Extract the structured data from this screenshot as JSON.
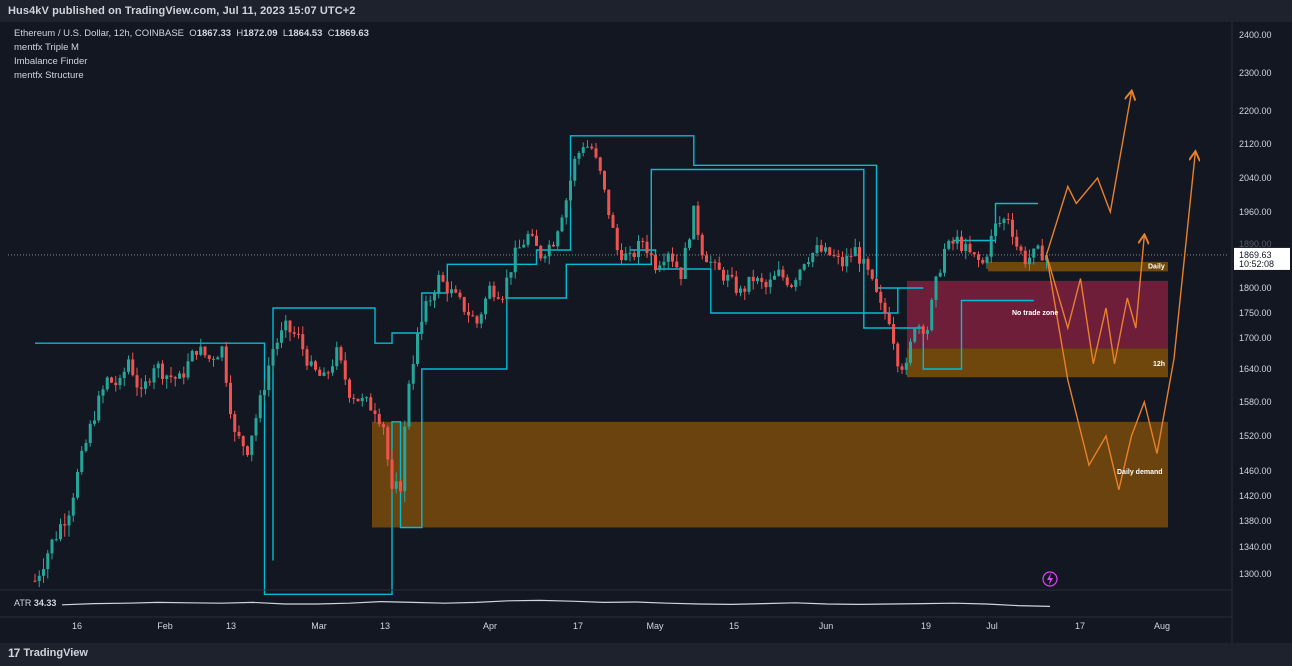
{
  "header": {
    "publisher": "Hus4kV published on TradingView.com, Jul 11, 2023 15:07 UTC+2"
  },
  "legend": {
    "symbol": "Ethereum / U.S. Dollar, 12h, COINBASE",
    "o_label": "O",
    "o": "1867.33",
    "h_label": "H",
    "h": "1872.09",
    "l_label": "L",
    "l": "1864.53",
    "c_label": "C",
    "c": "1869.63",
    "indicators": [
      "mentfx Triple M",
      "Imbalance Finder",
      "mentfx Structure"
    ]
  },
  "price_label": {
    "price": "1869.63",
    "countdown": "10:52:08",
    "partial_hidden": "1890.00"
  },
  "atr": {
    "label": "ATR",
    "value": "34.33"
  },
  "footer": {
    "brand": "TradingView"
  },
  "colors": {
    "background": "#131722",
    "bull": "#26a69a",
    "bear": "#ef5350",
    "structure": "#00bcd4",
    "demand_zone": "#7a4b0a",
    "no_trade_zone": "#7a1f3d",
    "projection": "#e8802a"
  },
  "chart_data": {
    "type": "candlestick",
    "price_axis_ticks": [
      1300,
      1340,
      1380,
      1420,
      1460,
      1520,
      1580,
      1640,
      1700,
      1750,
      1800,
      1880,
      1960,
      2040,
      2120,
      2200,
      2300,
      2400
    ],
    "price_axis_labels": [
      "1300.00",
      "1340.00",
      "1380.00",
      "1420.00",
      "1460.00",
      "1520.00",
      "1580.00",
      "1640.00",
      "1700.00",
      "1750.00",
      "1800.00",
      "1880.00",
      "1960.00",
      "2040.00",
      "2120.00",
      "2200.00",
      "2300.00",
      "2400.00"
    ],
    "time_axis_labels": [
      "16",
      "Feb",
      "13",
      "Mar",
      "13",
      "Apr",
      "17",
      "May",
      "15",
      "Jun",
      "19",
      "Jul",
      "17",
      "Aug"
    ],
    "zones": [
      {
        "label": "Daily",
        "top": 1855,
        "bottom": 1835
      },
      {
        "label": "No trade zone",
        "top": 1815,
        "bottom": 1680
      },
      {
        "label": "12h",
        "top": 1680,
        "bottom": 1625
      },
      {
        "label": "Daily demand",
        "top": 1545,
        "bottom": 1370
      }
    ],
    "last_price": 1869.63,
    "price_series": [
      {
        "d": 0,
        "p": 1290
      },
      {
        "d": 2,
        "p": 1320
      },
      {
        "d": 5,
        "p": 1360
      },
      {
        "d": 8,
        "p": 1400
      },
      {
        "d": 11,
        "p": 1480
      },
      {
        "d": 14,
        "p": 1560
      },
      {
        "d": 17,
        "p": 1620
      },
      {
        "d": 20,
        "p": 1610
      },
      {
        "d": 22,
        "p": 1660
      },
      {
        "d": 25,
        "p": 1590
      },
      {
        "d": 28,
        "p": 1650
      },
      {
        "d": 31,
        "p": 1630
      },
      {
        "d": 34,
        "p": 1620
      },
      {
        "d": 38,
        "p": 1680
      },
      {
        "d": 41,
        "p": 1660
      },
      {
        "d": 44,
        "p": 1680
      },
      {
        "d": 47,
        "p": 1520
      },
      {
        "d": 50,
        "p": 1500
      },
      {
        "d": 53,
        "p": 1580
      },
      {
        "d": 56,
        "p": 1680
      },
      {
        "d": 59,
        "p": 1720
      },
      {
        "d": 62,
        "p": 1700
      },
      {
        "d": 65,
        "p": 1640
      },
      {
        "d": 68,
        "p": 1620
      },
      {
        "d": 71,
        "p": 1670
      },
      {
        "d": 74,
        "p": 1600
      },
      {
        "d": 77,
        "p": 1580
      },
      {
        "d": 80,
        "p": 1570
      },
      {
        "d": 82,
        "p": 1540
      },
      {
        "d": 84,
        "p": 1420
      },
      {
        "d": 86,
        "p": 1440
      },
      {
        "d": 88,
        "p": 1620
      },
      {
        "d": 90,
        "p": 1700
      },
      {
        "d": 92,
        "p": 1760
      },
      {
        "d": 95,
        "p": 1820
      },
      {
        "d": 98,
        "p": 1790
      },
      {
        "d": 101,
        "p": 1760
      },
      {
        "d": 104,
        "p": 1730
      },
      {
        "d": 107,
        "p": 1800
      },
      {
        "d": 110,
        "p": 1790
      },
      {
        "d": 113,
        "p": 1870
      },
      {
        "d": 116,
        "p": 1910
      },
      {
        "d": 119,
        "p": 1870
      },
      {
        "d": 122,
        "p": 1900
      },
      {
        "d": 125,
        "p": 1990
      },
      {
        "d": 127,
        "p": 2080
      },
      {
        "d": 129,
        "p": 2120
      },
      {
        "d": 131,
        "p": 2110
      },
      {
        "d": 133,
        "p": 2050
      },
      {
        "d": 135,
        "p": 1960
      },
      {
        "d": 137,
        "p": 1880
      },
      {
        "d": 140,
        "p": 1860
      },
      {
        "d": 143,
        "p": 1900
      },
      {
        "d": 146,
        "p": 1850
      },
      {
        "d": 149,
        "p": 1880
      },
      {
        "d": 152,
        "p": 1830
      },
      {
        "d": 155,
        "p": 1960
      },
      {
        "d": 157,
        "p": 1880
      },
      {
        "d": 160,
        "p": 1840
      },
      {
        "d": 163,
        "p": 1820
      },
      {
        "d": 166,
        "p": 1790
      },
      {
        "d": 169,
        "p": 1820
      },
      {
        "d": 172,
        "p": 1800
      },
      {
        "d": 175,
        "p": 1830
      },
      {
        "d": 178,
        "p": 1810
      },
      {
        "d": 181,
        "p": 1860
      },
      {
        "d": 184,
        "p": 1880
      },
      {
        "d": 187,
        "p": 1870
      },
      {
        "d": 190,
        "p": 1850
      },
      {
        "d": 193,
        "p": 1880
      },
      {
        "d": 196,
        "p": 1830
      },
      {
        "d": 199,
        "p": 1760
      },
      {
        "d": 201,
        "p": 1740
      },
      {
        "d": 203,
        "p": 1660
      },
      {
        "d": 205,
        "p": 1640
      },
      {
        "d": 207,
        "p": 1730
      },
      {
        "d": 210,
        "p": 1720
      },
      {
        "d": 212,
        "p": 1810
      },
      {
        "d": 214,
        "p": 1880
      },
      {
        "d": 217,
        "p": 1900
      },
      {
        "d": 220,
        "p": 1870
      },
      {
        "d": 223,
        "p": 1850
      },
      {
        "d": 226,
        "p": 1930
      },
      {
        "d": 229,
        "p": 1950
      },
      {
        "d": 231,
        "p": 1890
      },
      {
        "d": 233,
        "p": 1860
      },
      {
        "d": 236,
        "p": 1875
      },
      {
        "d": 238,
        "p": 1870
      }
    ],
    "structure_lines": [
      [
        [
          0,
          1690
        ],
        [
          54,
          1690
        ],
        [
          54,
          1270
        ],
        [
          84,
          1270
        ],
        [
          84,
          1545
        ],
        [
          86,
          1545
        ],
        [
          86,
          1370
        ],
        [
          91,
          1370
        ],
        [
          91,
          1640
        ],
        [
          111,
          1640
        ],
        [
          111,
          1780
        ],
        [
          125,
          1780
        ],
        [
          125,
          1850
        ],
        [
          145,
          1850
        ],
        [
          145,
          2060
        ],
        [
          195,
          2060
        ],
        [
          195,
          1720
        ],
        [
          209,
          1720
        ],
        [
          209,
          1640
        ],
        [
          218,
          1640
        ],
        [
          218,
          1775
        ],
        [
          235,
          1775
        ]
      ],
      [
        [
          56,
          1320
        ],
        [
          56,
          1760
        ],
        [
          80,
          1760
        ],
        [
          80,
          1690
        ],
        [
          84,
          1690
        ],
        [
          84,
          1710
        ],
        [
          91,
          1710
        ],
        [
          91,
          1790
        ],
        [
          97,
          1790
        ],
        [
          97,
          1850
        ],
        [
          118,
          1850
        ],
        [
          118,
          1880
        ],
        [
          126,
          1880
        ],
        [
          126,
          2140
        ],
        [
          155,
          2140
        ],
        [
          155,
          2070
        ],
        [
          198,
          2070
        ],
        [
          198,
          1800
        ],
        [
          209,
          1800
        ]
      ],
      [
        [
          140,
          1880
        ],
        [
          146,
          1880
        ],
        [
          146,
          1840
        ],
        [
          159,
          1840
        ],
        [
          159,
          1750
        ],
        [
          203,
          1750
        ],
        [
          203,
          1800
        ]
      ],
      [
        [
          216,
          1900
        ],
        [
          226,
          1900
        ],
        [
          226,
          1980
        ],
        [
          236,
          1980
        ]
      ]
    ],
    "projections": [
      [
        [
          238,
          1870
        ],
        [
          243,
          1720
        ],
        [
          246,
          1820
        ],
        [
          249,
          1650
        ],
        [
          252,
          1760
        ],
        [
          254,
          1650
        ],
        [
          257,
          1780
        ],
        [
          259,
          1720
        ],
        [
          261,
          1910
        ]
      ],
      [
        [
          238,
          1870
        ],
        [
          243,
          1620
        ],
        [
          248,
          1470
        ],
        [
          252,
          1520
        ],
        [
          255,
          1430
        ],
        [
          258,
          1520
        ],
        [
          261,
          1580
        ],
        [
          264,
          1490
        ],
        [
          268,
          1660
        ],
        [
          273,
          2100
        ]
      ],
      [
        [
          238,
          1870
        ],
        [
          243,
          2020
        ],
        [
          245,
          1980
        ],
        [
          250,
          2040
        ],
        [
          253,
          1960
        ],
        [
          258,
          2250
        ]
      ]
    ],
    "atr_series": [
      0.4,
      0.55,
      0.6,
      0.7,
      0.65,
      0.6,
      0.7,
      0.5,
      0.5,
      0.6,
      0.8,
      0.7,
      0.6,
      0.7,
      0.9,
      0.95,
      0.85,
      0.7,
      0.75,
      0.6,
      0.5,
      0.45,
      0.55,
      0.65,
      0.5,
      0.45,
      0.5,
      0.55,
      0.6,
      0.5,
      0.3,
      0.2
    ]
  }
}
